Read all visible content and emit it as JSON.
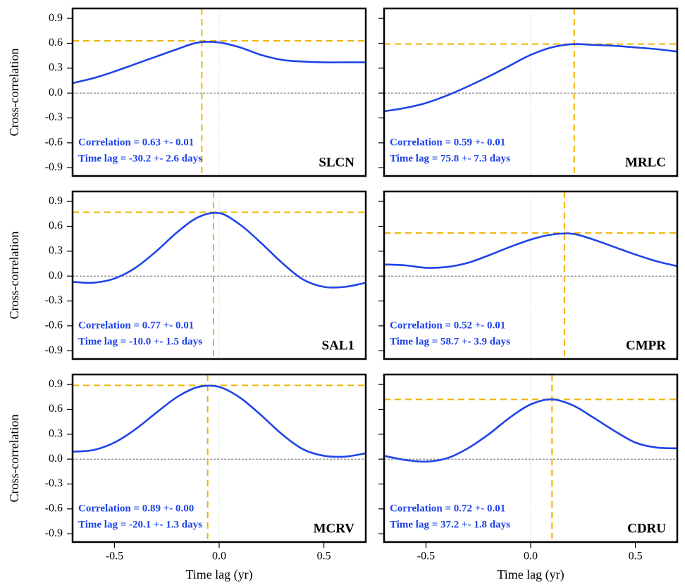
{
  "chart_data": [
    {
      "type": "line",
      "ylabel": "Cross-correlation",
      "label": "SLCN",
      "annotations": [
        "Correlation = 0.63 +- 0.01",
        "Time lag = -30.2 +- 2.6 days"
      ],
      "x": [
        -0.7,
        -0.6,
        -0.5,
        -0.4,
        -0.3,
        -0.2,
        -0.1,
        0,
        0.1,
        0.2,
        0.3,
        0.4,
        0.5,
        0.6,
        0.7
      ],
      "values": [
        0.12,
        0.18,
        0.26,
        0.35,
        0.44,
        0.53,
        0.61,
        0.61,
        0.55,
        0.46,
        0.4,
        0.38,
        0.37,
        0.37,
        0.37
      ],
      "peak": {
        "x": -0.083,
        "y": 0.63
      },
      "color": "#1f44e8",
      "peak_color": "#f0b400",
      "xlim": [
        -0.7,
        0.7
      ],
      "ylim": [
        -1.0,
        1.02
      ],
      "yticks": [
        -0.9,
        -0.6,
        -0.3,
        {
          "value": 0,
          "label": "0.0"
        },
        0.3,
        0.6,
        0.9
      ]
    },
    {
      "type": "line",
      "label": "MRLC",
      "annotations": [
        "Correlation = 0.59 +- 0.01",
        "Time lag = 75.8 +- 7.3 days"
      ],
      "x": [
        -0.7,
        -0.6,
        -0.5,
        -0.4,
        -0.3,
        -0.2,
        -0.1,
        0,
        0.1,
        0.2,
        0.3,
        0.4,
        0.5,
        0.6,
        0.7
      ],
      "values": [
        -0.22,
        -0.18,
        -0.12,
        -0.03,
        0.08,
        0.2,
        0.33,
        0.46,
        0.55,
        0.59,
        0.58,
        0.57,
        0.55,
        0.53,
        0.5
      ],
      "peak": {
        "x": 0.208,
        "y": 0.59
      },
      "color": "#1f44e8",
      "peak_color": "#f0b400",
      "xlim": [
        -0.7,
        0.7
      ],
      "ylim": [
        -1.0,
        1.02
      ],
      "yticks": [
        -0.9,
        -0.6,
        -0.3,
        0,
        0.3,
        0.6,
        0.9
      ]
    },
    {
      "type": "line",
      "ylabel": "Cross-correlation",
      "label": "SAL1",
      "annotations": [
        "Correlation = 0.77 +- 0.01",
        "Time lag = -10.0 +- 1.5 days"
      ],
      "x": [
        -0.7,
        -0.6,
        -0.5,
        -0.4,
        -0.3,
        -0.2,
        -0.1,
        0,
        0.1,
        0.2,
        0.3,
        0.4,
        0.5,
        0.6,
        0.7
      ],
      "values": [
        -0.07,
        -0.08,
        -0.03,
        0.1,
        0.3,
        0.53,
        0.71,
        0.76,
        0.62,
        0.4,
        0.16,
        -0.04,
        -0.13,
        -0.13,
        -0.08
      ],
      "peak": {
        "x": -0.027,
        "y": 0.77
      },
      "color": "#1f44e8",
      "peak_color": "#f0b400",
      "xlim": [
        -0.7,
        0.7
      ],
      "ylim": [
        -1.0,
        1.02
      ],
      "yticks": [
        -0.9,
        -0.6,
        -0.3,
        {
          "value": 0,
          "label": "0.0"
        },
        0.3,
        0.6,
        0.9
      ]
    },
    {
      "type": "line",
      "label": "CMPR",
      "annotations": [
        "Correlation = 0.52 +- 0.01",
        "Time lag = 58.7 +- 3.9 days"
      ],
      "x": [
        -0.7,
        -0.6,
        -0.5,
        -0.4,
        -0.3,
        -0.2,
        -0.1,
        0,
        0.1,
        0.2,
        0.3,
        0.4,
        0.5,
        0.6,
        0.7
      ],
      "values": [
        0.14,
        0.13,
        0.1,
        0.11,
        0.16,
        0.25,
        0.35,
        0.44,
        0.5,
        0.51,
        0.44,
        0.35,
        0.26,
        0.18,
        0.12
      ],
      "peak": {
        "x": 0.161,
        "y": 0.52
      },
      "color": "#1f44e8",
      "peak_color": "#f0b400",
      "xlim": [
        -0.7,
        0.7
      ],
      "ylim": [
        -1.0,
        1.02
      ],
      "yticks": [
        -0.9,
        -0.6,
        -0.3,
        0,
        0.3,
        0.6,
        0.9
      ]
    },
    {
      "type": "line",
      "ylabel": "Cross-correlation",
      "xlabel": "Time lag (yr)",
      "label": "MCRV",
      "annotations": [
        "Correlation = 0.89 +- 0.00",
        "Time lag = -20.1 +- 1.3 days"
      ],
      "x": [
        -0.7,
        -0.6,
        -0.5,
        -0.4,
        -0.3,
        -0.2,
        -0.1,
        0,
        0.1,
        0.2,
        0.3,
        0.4,
        0.5,
        0.6,
        0.7
      ],
      "values": [
        0.09,
        0.11,
        0.2,
        0.36,
        0.56,
        0.75,
        0.87,
        0.87,
        0.74,
        0.53,
        0.3,
        0.12,
        0.04,
        0.03,
        0.07
      ],
      "peak": {
        "x": -0.055,
        "y": 0.89
      },
      "color": "#1f44e8",
      "peak_color": "#f0b400",
      "xlim": [
        -0.7,
        0.7
      ],
      "ylim": [
        -1.0,
        1.02
      ],
      "xticks": [
        -0.5,
        {
          "value": 0,
          "label": "0.0"
        },
        0.5
      ],
      "yticks": [
        -0.9,
        -0.6,
        -0.3,
        {
          "value": 0,
          "label": "0.0"
        },
        0.3,
        0.6,
        0.9
      ]
    },
    {
      "type": "line",
      "xlabel": "Time lag (yr)",
      "label": "CDRU",
      "annotations": [
        "Correlation = 0.72 +- 0.01",
        "Time lag = 37.2 +- 1.8 days"
      ],
      "x": [
        -0.7,
        -0.6,
        -0.5,
        -0.4,
        -0.3,
        -0.2,
        -0.1,
        0,
        0.1,
        0.2,
        0.3,
        0.4,
        0.5,
        0.6,
        0.7
      ],
      "values": [
        0.04,
        -0.01,
        -0.03,
        0.01,
        0.13,
        0.3,
        0.5,
        0.66,
        0.72,
        0.65,
        0.5,
        0.34,
        0.2,
        0.14,
        0.13
      ],
      "peak": {
        "x": 0.102,
        "y": 0.72
      },
      "color": "#1f44e8",
      "peak_color": "#f0b400",
      "xlim": [
        -0.7,
        0.7
      ],
      "ylim": [
        -1.0,
        1.02
      ],
      "xticks": [
        -0.5,
        {
          "value": 0,
          "label": "0.0"
        },
        0.5
      ],
      "yticks": [
        -0.9,
        -0.6,
        -0.3,
        0,
        0.3,
        0.6,
        0.9
      ]
    }
  ]
}
